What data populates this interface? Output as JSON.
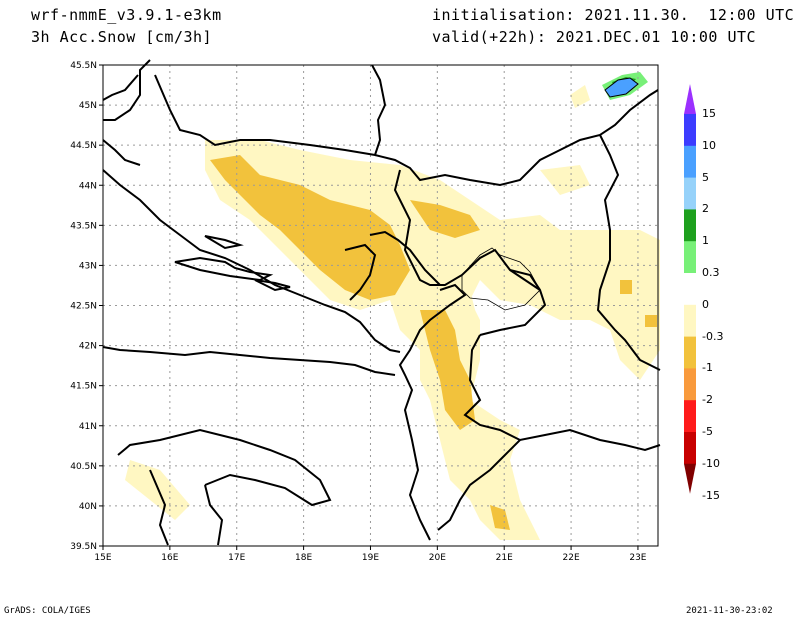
{
  "header": {
    "model": "wrf-nmmE_v3.9.1-e3km",
    "field": "3h Acc.Snow [cm/3h]",
    "init": "initialisation: 2021.11.30.  12:00 UTC",
    "valid": "valid(+22h): 2021.DEC.01 10:00 UTC"
  },
  "map": {
    "lon_labels": [
      "15E",
      "16E",
      "17E",
      "18E",
      "19E",
      "20E",
      "21E",
      "22E",
      "23E"
    ],
    "lat_labels": [
      "45.5N",
      "45N",
      "44.5N",
      "44N",
      "43.5N",
      "43N",
      "42.5N",
      "42N",
      "41.5N",
      "41N",
      "40.5N",
      "40N",
      "39.5N"
    ],
    "lon_range": [
      15,
      23.3
    ],
    "lat_range": [
      39.5,
      45.5
    ],
    "grid": true
  },
  "colorbar": {
    "labels": [
      "15",
      "10",
      "5",
      "2",
      "1",
      "0.3",
      "0",
      "-0.3",
      "-1",
      "-2",
      "-5",
      "-10",
      "-15"
    ],
    "colors": [
      "#9b30ff",
      "#3c3cff",
      "#4aa0ff",
      "#96d2fa",
      "#1ea01e",
      "#78f078",
      "#ffffff",
      "#fff7c2",
      "#f2c23c",
      "#f99a3c",
      "#ff1a1a",
      "#c80000",
      "#800000"
    ]
  },
  "footer": {
    "left": "GrADS: COLA/IGES",
    "right": "2021-11-30-23:02"
  }
}
